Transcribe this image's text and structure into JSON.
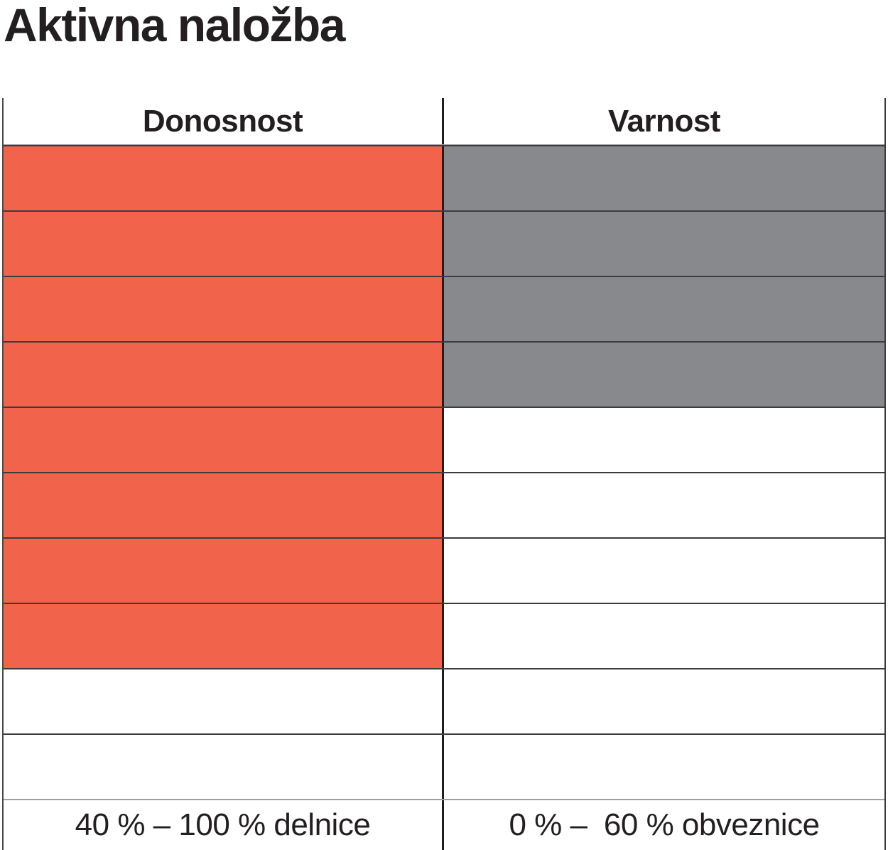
{
  "title": "Aktivna naložba",
  "table": {
    "total_rows": 10,
    "columns": [
      {
        "key": "donosnost",
        "header": "Donosnost",
        "rating": 8,
        "fill_color": "#F2634B",
        "footer": "40 % – 100 % delnice"
      },
      {
        "key": "varnost",
        "header": "Varnost",
        "rating": 4,
        "fill_color": "#87898C",
        "footer": "0 % –  60 % obveznice"
      }
    ]
  },
  "colors": {
    "donosnost_fill": "#F2634B",
    "varnost_fill": "#87898C",
    "grid_dark": "#3C3C3C",
    "grid_light": "#9E9E9E",
    "text": "#231F20"
  },
  "chart_data": {
    "type": "bar",
    "title": "Aktivna naložba",
    "categories": [
      "Donosnost",
      "Varnost"
    ],
    "values": [
      8,
      4
    ],
    "value_max": 10,
    "unit": "filled cells out of 10 rows, filled from top",
    "annotations": [
      "40 % – 100 % delnice",
      "0 % –  60 % obveznice"
    ],
    "legend_position": "none",
    "grid": true,
    "colors": [
      "#F2634B",
      "#87898C"
    ]
  }
}
